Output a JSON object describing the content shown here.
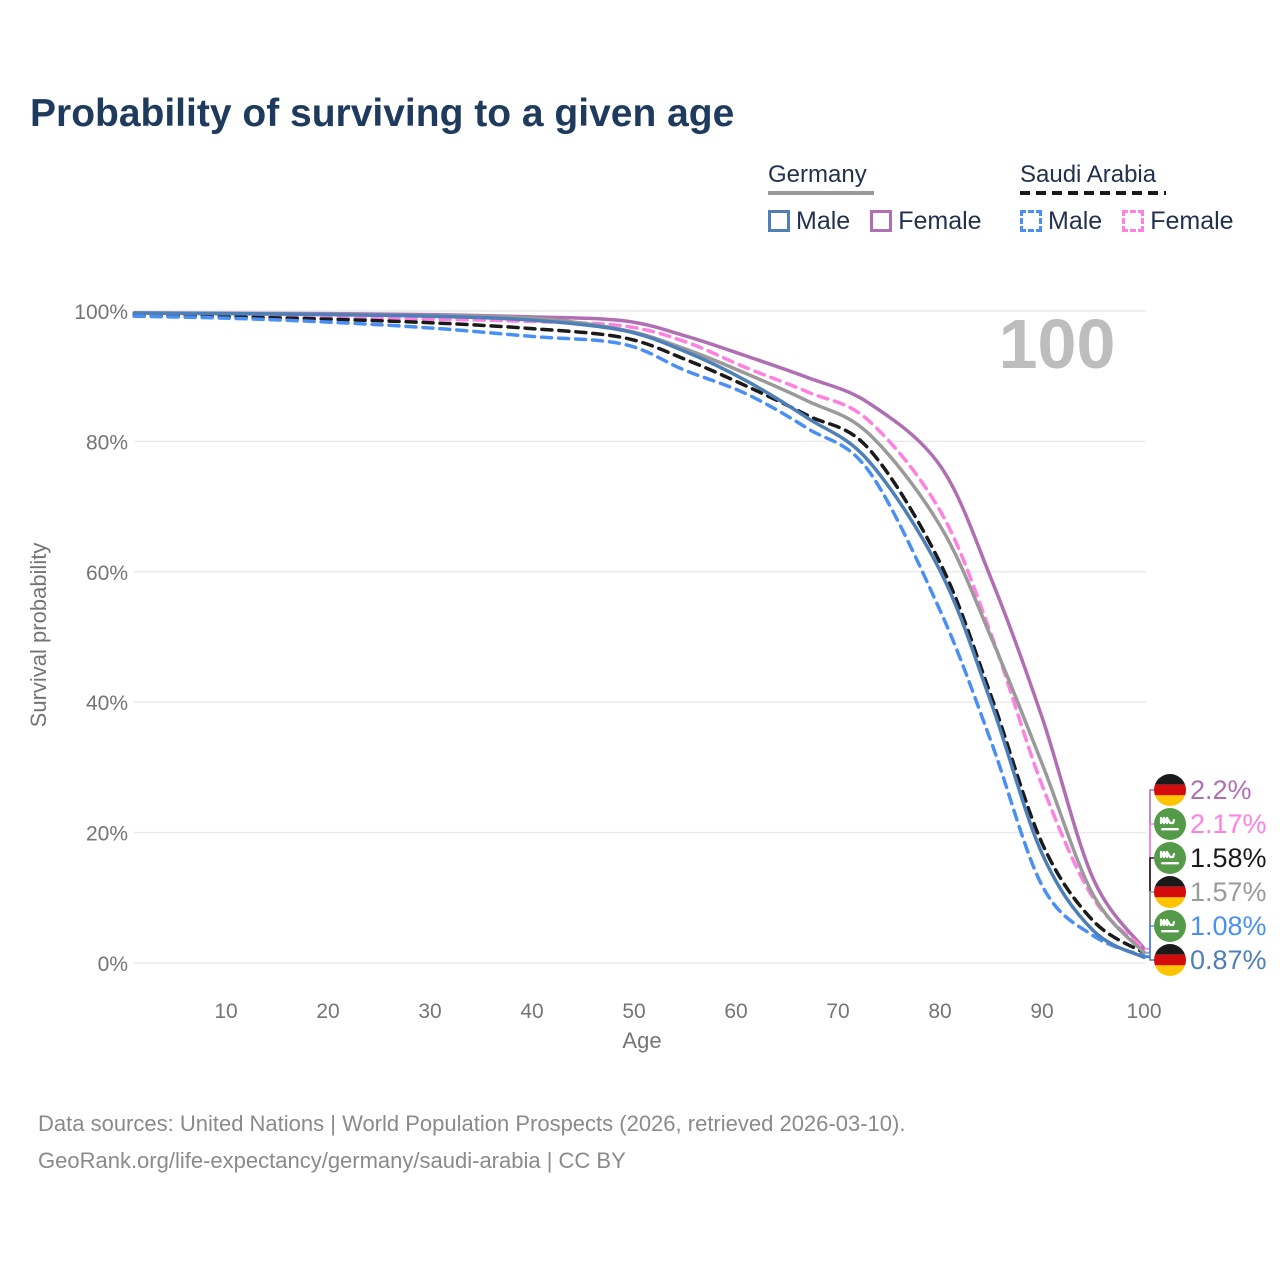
{
  "title": "Probability of surviving to a given age",
  "watermark": "100",
  "legend": {
    "groups": [
      {
        "label": "Germany",
        "line_style": "solid",
        "line_color": "#9a9a9a",
        "items": [
          {
            "label": "Male",
            "color": "#4d7fb8",
            "dashed": false
          },
          {
            "label": "Female",
            "color": "#b06fb2",
            "dashed": false
          }
        ]
      },
      {
        "label": "Saudi Arabia",
        "line_style": "dashed",
        "line_color": "#1a1a1a",
        "items": [
          {
            "label": "Male",
            "color": "#4a90f4",
            "dashed": true
          },
          {
            "label": "Female",
            "color": "#ff80e0",
            "dashed": true
          }
        ]
      }
    ]
  },
  "chart_data": {
    "type": "line",
    "title": "Probability of surviving to a given age",
    "xlabel": "Age",
    "ylabel": "Survival probability",
    "xlim": [
      0,
      100
    ],
    "ylim": [
      0,
      100
    ],
    "grid": "horizontal",
    "x_ticks": [
      10,
      20,
      30,
      40,
      50,
      60,
      70,
      80,
      90,
      100
    ],
    "y_ticks": [
      0,
      20,
      40,
      60,
      80,
      100
    ],
    "y_tick_suffix": "%",
    "series": [
      {
        "id": "germany-female",
        "name": "Germany Female",
        "country": "Germany",
        "sex": "Female",
        "color": "#b06fb2",
        "dashed": false,
        "values": [
          [
            1,
            99.7
          ],
          [
            10,
            99.65
          ],
          [
            20,
            99.6
          ],
          [
            30,
            99.45
          ],
          [
            40,
            99.1
          ],
          [
            49,
            98.5
          ],
          [
            55,
            96.2
          ],
          [
            61,
            93.1
          ],
          [
            67,
            89.8
          ],
          [
            73,
            85.9
          ],
          [
            80,
            76.3
          ],
          [
            85,
            59.0
          ],
          [
            90,
            37.7
          ],
          [
            95,
            13.0
          ],
          [
            100,
            2.2
          ]
        ]
      },
      {
        "id": "saudi-female",
        "name": "Saudi Arabia Female",
        "country": "Saudi Arabia",
        "sex": "Female",
        "color": "#ff80e0",
        "dashed": true,
        "values": [
          [
            1,
            99.4
          ],
          [
            10,
            99.2
          ],
          [
            20,
            98.9
          ],
          [
            30,
            98.75
          ],
          [
            40,
            98.4
          ],
          [
            49,
            97.7
          ],
          [
            55,
            95.3
          ],
          [
            61,
            91.3
          ],
          [
            67,
            87.6
          ],
          [
            73,
            83.2
          ],
          [
            80,
            69.4
          ],
          [
            85,
            50.5
          ],
          [
            90,
            27.3
          ],
          [
            95,
            10.0
          ],
          [
            100,
            2.17
          ]
        ]
      },
      {
        "id": "saudi-all",
        "name": "Saudi Arabia Both sexes",
        "country": "Saudi Arabia",
        "sex": "All",
        "color": "#1a1a1a",
        "dashed": true,
        "values": [
          [
            1,
            99.3
          ],
          [
            10,
            99.1
          ],
          [
            20,
            98.75
          ],
          [
            30,
            98.2
          ],
          [
            40,
            97.3
          ],
          [
            49,
            95.9
          ],
          [
            55,
            92.6
          ],
          [
            61,
            88.5
          ],
          [
            67,
            84.0
          ],
          [
            73,
            78.9
          ],
          [
            80,
            61.4
          ],
          [
            85,
            41.0
          ],
          [
            90,
            18.4
          ],
          [
            95,
            6.5
          ],
          [
            100,
            1.58
          ]
        ]
      },
      {
        "id": "germany-all",
        "name": "Germany Both sexes",
        "country": "Germany",
        "sex": "All",
        "color": "#9a9a9a",
        "dashed": false,
        "values": [
          [
            1,
            99.7
          ],
          [
            10,
            99.6
          ],
          [
            20,
            99.5
          ],
          [
            30,
            99.3
          ],
          [
            40,
            98.9
          ],
          [
            49,
            97.1
          ],
          [
            55,
            94.2
          ],
          [
            61,
            90.4
          ],
          [
            67,
            86.2
          ],
          [
            73,
            81.2
          ],
          [
            80,
            67.1
          ],
          [
            85,
            50.0
          ],
          [
            90,
            30.6
          ],
          [
            95,
            10.5
          ],
          [
            100,
            1.57
          ]
        ]
      },
      {
        "id": "saudi-male",
        "name": "Saudi Arabia Male",
        "country": "Saudi Arabia",
        "sex": "Male",
        "color": "#4a90f4",
        "dashed": true,
        "values": [
          [
            1,
            99.2
          ],
          [
            10,
            98.9
          ],
          [
            20,
            98.3
          ],
          [
            30,
            97.4
          ],
          [
            40,
            96.1
          ],
          [
            49,
            94.9
          ],
          [
            55,
            90.9
          ],
          [
            61,
            87.3
          ],
          [
            67,
            82.0
          ],
          [
            73,
            75.5
          ],
          [
            80,
            54.1
          ],
          [
            85,
            34.0
          ],
          [
            90,
            11.9
          ],
          [
            95,
            4.2
          ],
          [
            100,
            1.08
          ]
        ]
      },
      {
        "id": "germany-male",
        "name": "Germany Male",
        "country": "Germany",
        "sex": "Male",
        "color": "#4d7fb8",
        "dashed": false,
        "values": [
          [
            1,
            99.7
          ],
          [
            10,
            99.6
          ],
          [
            20,
            99.45
          ],
          [
            30,
            99.2
          ],
          [
            40,
            98.6
          ],
          [
            49,
            97.0
          ],
          [
            55,
            93.8
          ],
          [
            61,
            89.3
          ],
          [
            67,
            83.6
          ],
          [
            73,
            77.0
          ],
          [
            80,
            60.2
          ],
          [
            85,
            40.0
          ],
          [
            90,
            16.8
          ],
          [
            95,
            5.0
          ],
          [
            100,
            0.87
          ]
        ]
      }
    ],
    "end_labels": [
      {
        "series": "germany-female",
        "flag": "de",
        "text": "2.2%",
        "color": "#b06fb2"
      },
      {
        "series": "saudi-female",
        "flag": "sa",
        "text": "2.17%",
        "color": "#ff80e0"
      },
      {
        "series": "saudi-all",
        "flag": "sa",
        "text": "1.58%",
        "color": "#1a1a1a"
      },
      {
        "series": "germany-all",
        "flag": "de",
        "text": "1.57%",
        "color": "#9a9a9a"
      },
      {
        "series": "saudi-male",
        "flag": "sa",
        "text": "1.08%",
        "color": "#4a90f4"
      },
      {
        "series": "germany-male",
        "flag": "de",
        "text": "0.87%",
        "color": "#4d7fb8"
      }
    ],
    "flag_colors": {
      "de": [
        "#1a1a1a",
        "#d40b0b",
        "#ffc400"
      ],
      "sa": {
        "bg": "#549a48",
        "emblem": "#ffffff"
      }
    }
  },
  "footer": {
    "line1": "Data sources: United Nations | World Population Prospects (2026, retrieved 2026-03-10).",
    "line2": "GeoRank.org/life-expectancy/germany/saudi-arabia | CC BY"
  }
}
